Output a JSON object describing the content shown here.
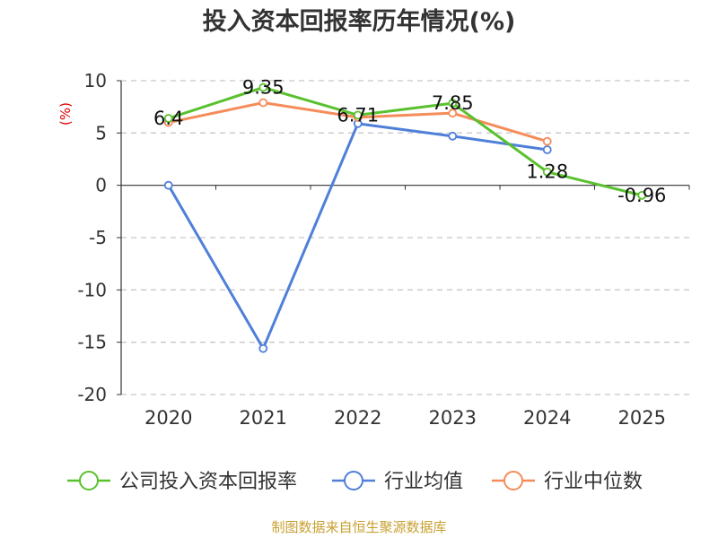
{
  "chart_data": {
    "type": "line",
    "title": "投入资本回报率历年情况(%)",
    "ylabel": "(%)",
    "categories": [
      "2020",
      "2021",
      "2022",
      "2023",
      "2024",
      "2025"
    ],
    "ylim": [
      -20,
      10
    ],
    "yticks": [
      10,
      5,
      0,
      -5,
      -10,
      -15,
      -20
    ],
    "grid": true,
    "legend_position": "bottom",
    "series": [
      {
        "name": "公司投入资本回报率",
        "color": "#5ac12e",
        "values": [
          6.4,
          9.35,
          6.71,
          7.85,
          1.28,
          -0.96
        ],
        "labels": [
          "6.4",
          "9.35",
          "6.71",
          "7.85",
          "1.28",
          "-0.96"
        ]
      },
      {
        "name": "行业均值",
        "color": "#4f7fd9",
        "values": [
          0.0,
          -15.6,
          5.9,
          4.7,
          3.4,
          null
        ]
      },
      {
        "name": "行业中位数",
        "color": "#f58c5a",
        "values": [
          6.0,
          7.9,
          6.5,
          6.9,
          4.2,
          null
        ]
      }
    ],
    "source": "制图数据来自恒生聚源数据库"
  }
}
